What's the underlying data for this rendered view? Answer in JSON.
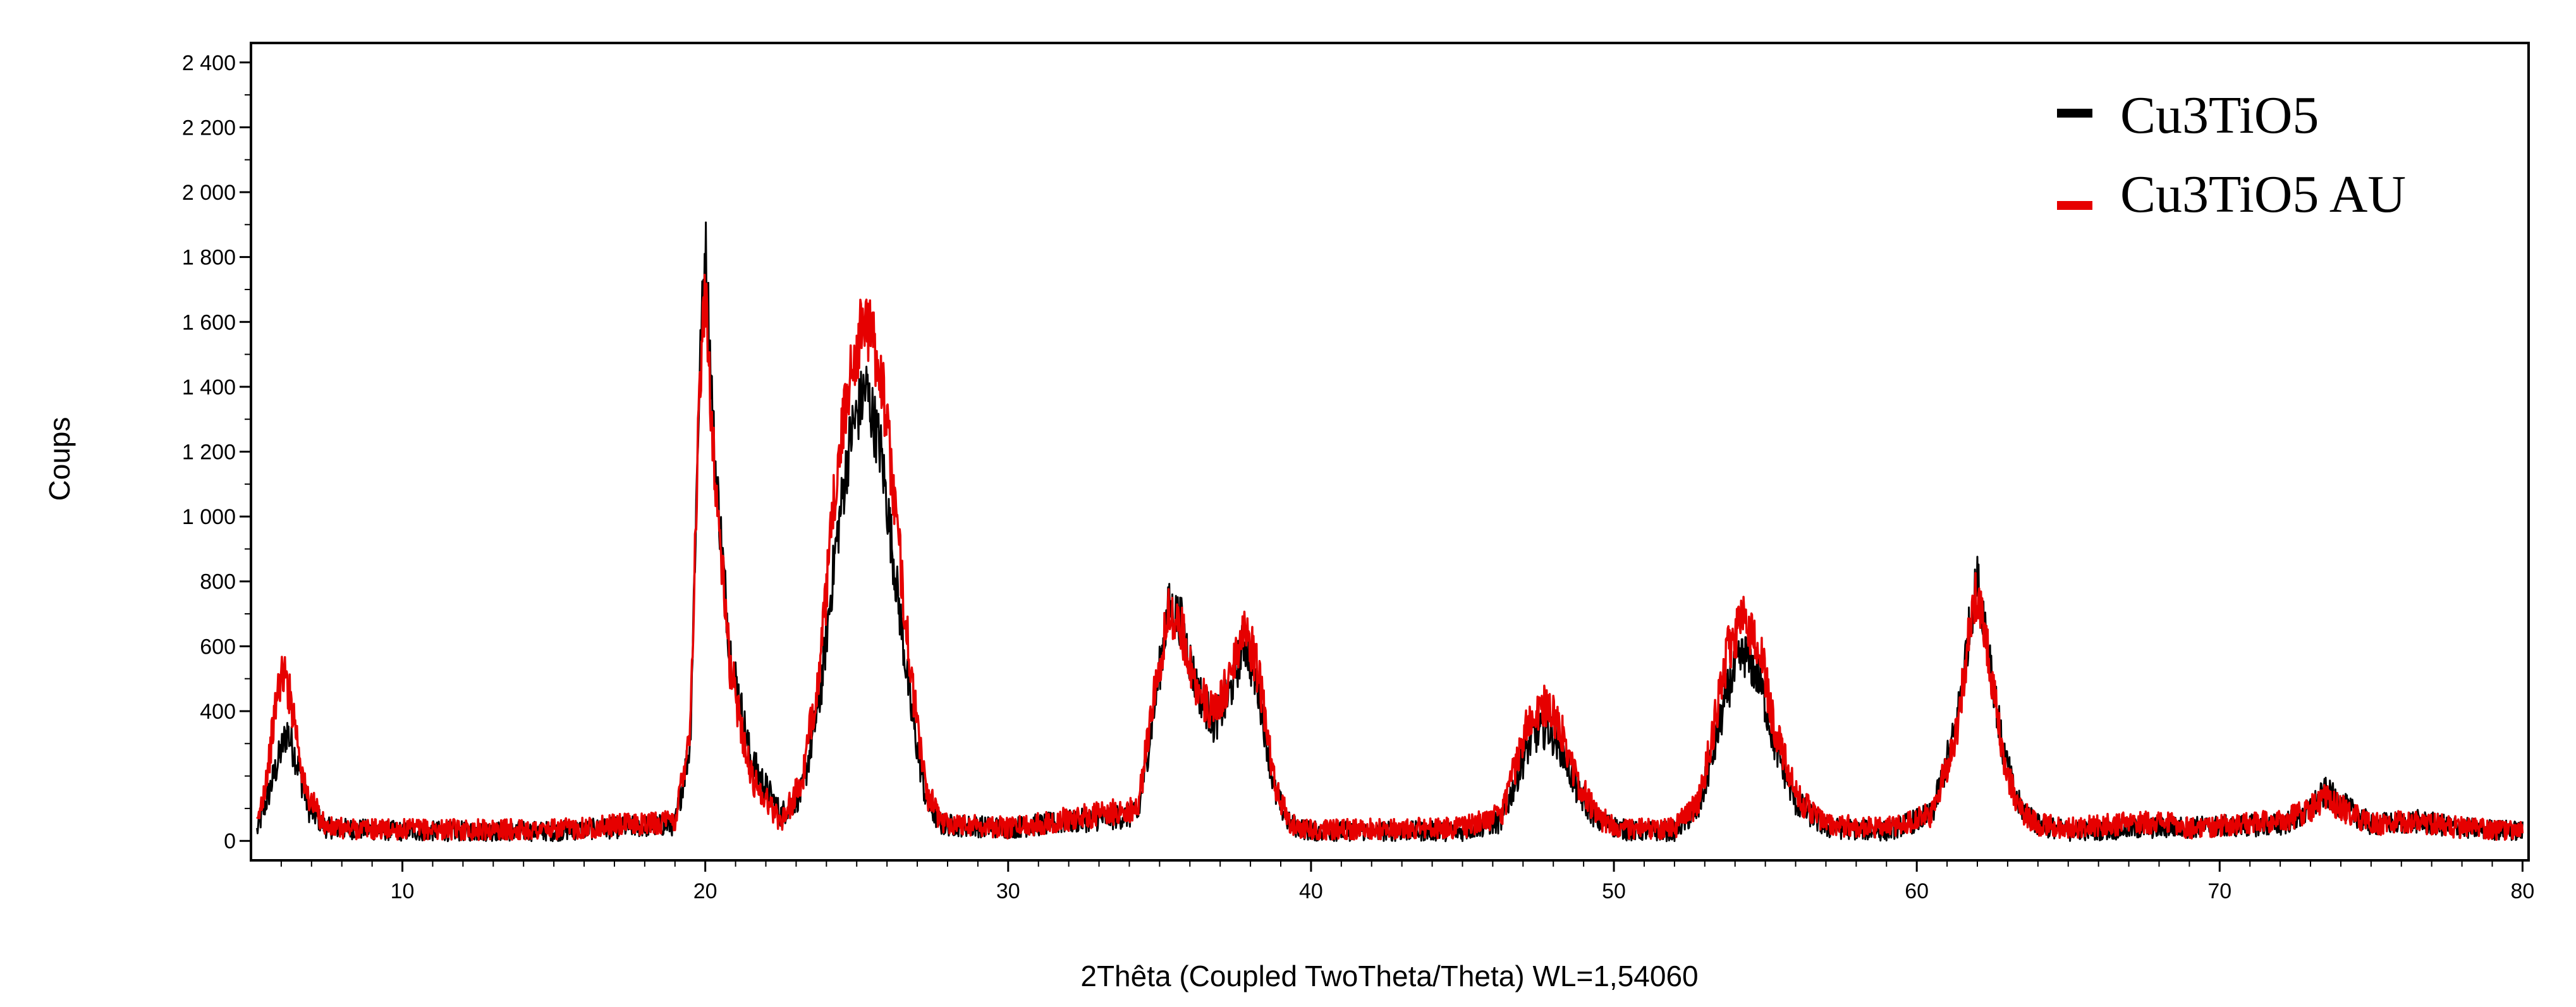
{
  "chart_data": {
    "type": "line",
    "xlabel": "2Thêta (Coupled TwoTheta/Theta) WL=1,54060",
    "ylabel": "Coups",
    "xlim": [
      5,
      80.2
    ],
    "ylim": [
      -60,
      2460
    ],
    "x_ticks": [
      10,
      20,
      30,
      40,
      50,
      60,
      70,
      80
    ],
    "y_ticks": [
      0,
      400,
      600,
      800,
      1000,
      1200,
      1400,
      1600,
      1800,
      2000,
      2200,
      2400
    ],
    "y_tick_labels": [
      "0",
      "400",
      "600",
      "800",
      "1 000",
      "1 200",
      "1 400",
      "1 600",
      "1 800",
      "2 000",
      "2 200",
      "2 400"
    ],
    "y_minor_ticks": [
      100,
      200,
      300,
      500,
      700,
      900,
      1100,
      1300,
      1500,
      1700,
      1900,
      2100,
      2300
    ],
    "grid": false,
    "legend_position": "top-right",
    "series": [
      {
        "name": "Cu3TiO5",
        "color": "#000000",
        "x": [
          5.2,
          5.6,
          6.0,
          6.2,
          6.5,
          6.9,
          7.5,
          10,
          15,
          19.0,
          19.5,
          19.8,
          20.0,
          20.3,
          20.8,
          21.5,
          22.5,
          23.2,
          23.8,
          24.3,
          24.8,
          25.3,
          25.8,
          26.3,
          26.8,
          27.3,
          27.8,
          30,
          34.3,
          34.8,
          35.3,
          35.7,
          36.2,
          36.8,
          37.3,
          37.8,
          38.3,
          38.8,
          39.3,
          40,
          45,
          46.3,
          46.8,
          47.3,
          47.8,
          48.3,
          48.8,
          49.5,
          50.5,
          52,
          52.8,
          53.3,
          53.8,
          54.3,
          54.8,
          55.3,
          56.0,
          57.0,
          59,
          60.5,
          61.3,
          61.8,
          62.0,
          62.3,
          62.8,
          63.3,
          64.0,
          65,
          68,
          72,
          72.8,
          73.5,
          74.2,
          75,
          76.5,
          78,
          80
        ],
        "y": [
          30,
          150,
          280,
          340,
          250,
          100,
          40,
          30,
          30,
          50,
          300,
          1400,
          1850,
          1200,
          600,
          250,
          80,
          150,
          450,
          900,
          1250,
          1400,
          1200,
          800,
          400,
          120,
          50,
          40,
          80,
          400,
          720,
          680,
          480,
          360,
          450,
          620,
          450,
          150,
          50,
          30,
          30,
          60,
          200,
          320,
          350,
          280,
          150,
          60,
          30,
          30,
          100,
          280,
          480,
          580,
          500,
          300,
          120,
          40,
          30,
          80,
          350,
          700,
          800,
          650,
          300,
          120,
          50,
          30,
          40,
          50,
          80,
          150,
          100,
          50,
          60,
          40,
          30
        ]
      },
      {
        "name": "Cu3TiO5 AU",
        "color": "#e60000",
        "x": [
          5.2,
          5.6,
          5.9,
          6.1,
          6.4,
          6.8,
          7.5,
          10,
          15,
          19.0,
          19.5,
          19.8,
          20.0,
          20.3,
          20.8,
          21.5,
          22.5,
          23.2,
          23.8,
          24.3,
          24.8,
          25.3,
          25.8,
          26.3,
          26.8,
          27.3,
          27.8,
          30,
          34.3,
          34.8,
          35.3,
          35.7,
          36.2,
          36.8,
          37.3,
          37.8,
          38.3,
          38.8,
          39.3,
          40,
          45,
          46.3,
          46.8,
          47.3,
          47.8,
          48.3,
          48.8,
          49.5,
          50.5,
          52,
          52.8,
          53.3,
          53.8,
          54.3,
          54.8,
          55.3,
          56.0,
          57.0,
          59,
          60.5,
          61.3,
          61.8,
          62.0,
          62.3,
          62.8,
          63.3,
          64.0,
          65,
          68,
          69,
          72,
          72.8,
          73.5,
          74.2,
          75,
          76.5,
          78,
          80
        ],
        "y": [
          40,
          250,
          480,
          520,
          400,
          150,
          40,
          35,
          35,
          60,
          350,
          1350,
          1700,
          1150,
          550,
          200,
          60,
          180,
          550,
          1100,
          1450,
          1620,
          1450,
          1000,
          500,
          150,
          60,
          40,
          100,
          450,
          700,
          660,
          480,
          380,
          500,
          680,
          500,
          170,
          50,
          35,
          40,
          80,
          250,
          400,
          420,
          330,
          180,
          70,
          35,
          40,
          120,
          350,
          600,
          680,
          600,
          350,
          140,
          50,
          40,
          80,
          330,
          680,
          780,
          620,
          280,
          110,
          50,
          40,
          60,
          40,
          60,
          90,
          130,
          90,
          50,
          60,
          40,
          30
        ]
      }
    ]
  },
  "legend": {
    "items": [
      {
        "label": "Cu3TiO5",
        "color": "#000000"
      },
      {
        "label": "Cu3TiO5 AU",
        "color": "#e60000"
      }
    ]
  }
}
